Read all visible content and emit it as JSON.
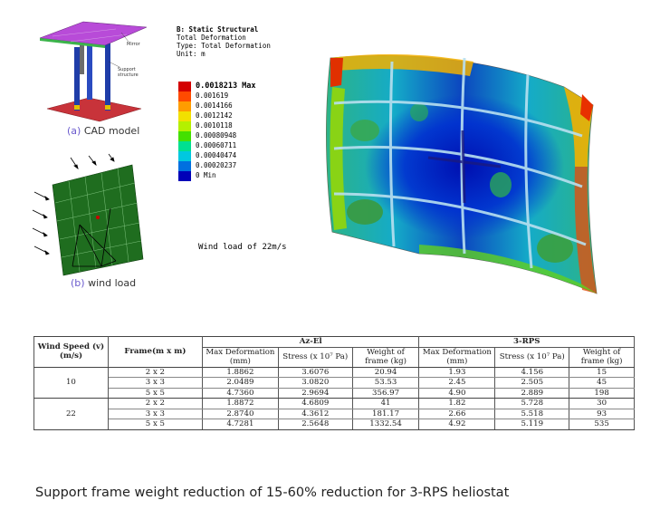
{
  "figures": {
    "cad": {
      "caption_letter": "(a)",
      "caption_text": "CAD model",
      "callouts": [
        "Mirror",
        "Support",
        "structure"
      ]
    },
    "wind": {
      "caption_letter": "(b)",
      "caption_text": "wind load"
    },
    "fea": {
      "header_lines": [
        "B: Static Structural",
        "Total Deformation",
        "Type: Total Deformation",
        "Unit: m"
      ],
      "legend": [
        {
          "label": "0.0018213 Max",
          "color": "#d40000"
        },
        {
          "label": "0.001619",
          "color": "#ff4a00"
        },
        {
          "label": "0.0014166",
          "color": "#ff9c00"
        },
        {
          "label": "0.0012142",
          "color": "#f2e000"
        },
        {
          "label": "0.0010118",
          "color": "#b4f000"
        },
        {
          "label": "0.00080948",
          "color": "#44e000"
        },
        {
          "label": "0.00060711",
          "color": "#00e090"
        },
        {
          "label": "0.00040474",
          "color": "#00c8e0"
        },
        {
          "label": "0.00020237",
          "color": "#0070e0"
        },
        {
          "label": "0 Min",
          "color": "#0000b8"
        }
      ],
      "wind_label": "Wind load of 22m/s"
    }
  },
  "table": {
    "header": {
      "wind_speed": "Wind Speed (v) (m/s)",
      "frame": "Frame(m x m)",
      "group_az": "Az-El",
      "group_rps": "3-RPS",
      "max_def": "Max Deformation (mm)",
      "stress": "Stress (x 10⁷ Pa)",
      "weight": "Weight of frame (kg)"
    },
    "rows": [
      {
        "speed": "10",
        "frame": "2 x 2",
        "az_def": "1.8862",
        "az_stress": "3.6076",
        "az_weight": "20.94",
        "rps_def": "1.93",
        "rps_stress": "4.156",
        "rps_weight": "15"
      },
      {
        "speed": "",
        "frame": "3 x 3",
        "az_def": "2.0489",
        "az_stress": "3.0820",
        "az_weight": "53.53",
        "rps_def": "2.45",
        "rps_stress": "2.505",
        "rps_weight": "45"
      },
      {
        "speed": "",
        "frame": "5 x 5",
        "az_def": "4.7360",
        "az_stress": "2.9694",
        "az_weight": "356.97",
        "rps_def": "4.90",
        "rps_stress": "2.889",
        "rps_weight": "198"
      },
      {
        "speed": "22",
        "frame": "2 x 2",
        "az_def": "1.8872",
        "az_stress": "4.6809",
        "az_weight": "41",
        "rps_def": "1.82",
        "rps_stress": "5.728",
        "rps_weight": "30"
      },
      {
        "speed": "",
        "frame": "3 x 3",
        "az_def": "2.8740",
        "az_stress": "4.3612",
        "az_weight": "181.17",
        "rps_def": "2.66",
        "rps_stress": "5.518",
        "rps_weight": "93"
      },
      {
        "speed": "",
        "frame": "5 x 5",
        "az_def": "4.7281",
        "az_stress": "2.5648",
        "az_weight": "1332.54",
        "rps_def": "4.92",
        "rps_stress": "5.119",
        "rps_weight": "535"
      }
    ]
  },
  "summary": "Support frame weight reduction of 15-60% reduction for 3-RPS heliostat"
}
